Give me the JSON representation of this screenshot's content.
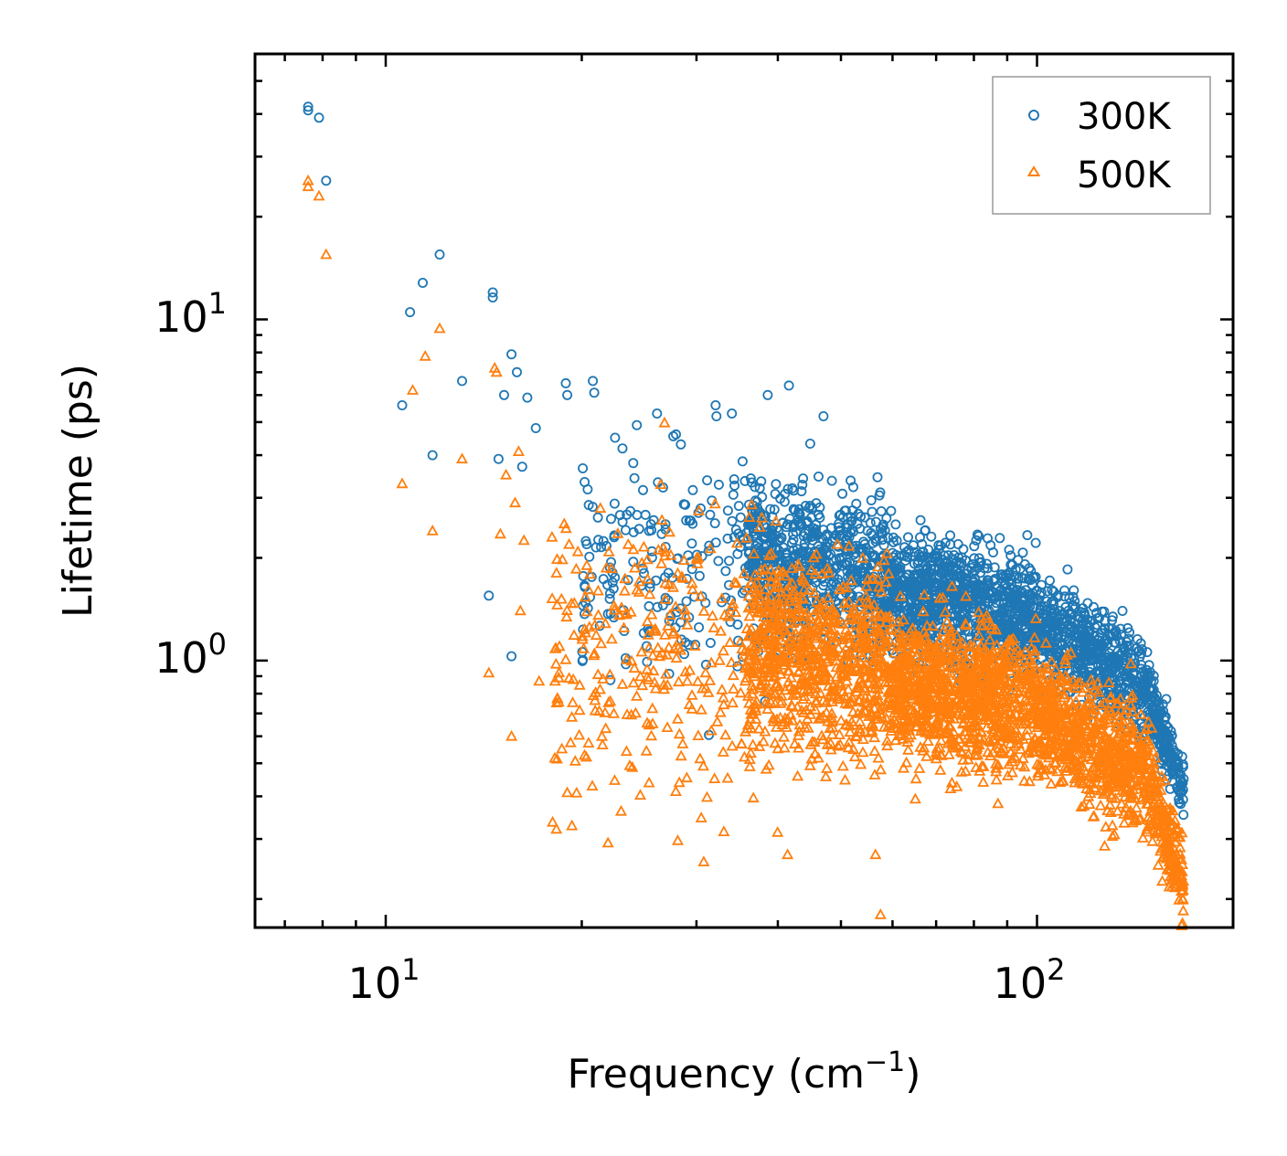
{
  "chart_data": {
    "type": "scatter",
    "title": "",
    "xlabel": "Frequency (cm",
    "xlabel_sup": "−1",
    "xlabel_suffix": ")",
    "ylabel": "Lifetime (ps)",
    "xscale": "log",
    "yscale": "log",
    "xlim": [
      6.3,
      200
    ],
    "ylim": [
      0.165,
      60
    ],
    "x_tick_labels": [
      {
        "value": 10,
        "base": "10",
        "exp": "1"
      },
      {
        "value": 100,
        "base": "10",
        "exp": "2"
      }
    ],
    "y_tick_labels": [
      {
        "value": 1,
        "base": "10",
        "exp": "0"
      },
      {
        "value": 10,
        "base": "10",
        "exp": "1"
      }
    ],
    "legend_position": "top-right",
    "series": [
      {
        "name": "300K",
        "marker": "circle",
        "color": "#1f77b4",
        "points": [
          [
            7.6,
            42
          ],
          [
            7.6,
            41
          ],
          [
            7.9,
            39
          ],
          [
            8.1,
            25.5
          ],
          [
            10.6,
            5.6
          ],
          [
            10.9,
            10.5
          ],
          [
            11.4,
            12.8
          ],
          [
            11.8,
            4.0
          ],
          [
            12.1,
            15.5
          ],
          [
            13.1,
            6.6
          ],
          [
            14.6,
            12
          ],
          [
            14.6,
            11.6
          ],
          [
            14.9,
            3.9
          ],
          [
            15.2,
            6.0
          ],
          [
            15.6,
            7.9
          ],
          [
            15.9,
            7.0
          ],
          [
            16.2,
            3.7
          ],
          [
            16.5,
            5.9
          ],
          [
            17.0,
            4.8
          ],
          [
            14.4,
            1.55
          ],
          [
            15.6,
            1.03
          ],
          [
            18.9,
            6.5
          ],
          [
            19.0,
            6.0
          ],
          [
            20.8,
            6.6
          ],
          [
            20.9,
            6.1
          ],
          [
            22.5,
            4.5
          ],
          [
            24.3,
            4.9
          ],
          [
            26.1,
            5.3
          ],
          [
            27.9,
            4.6
          ],
          [
            32.1,
            5.6
          ],
          [
            32.2,
            5.2
          ],
          [
            34.0,
            5.3
          ],
          [
            41.6,
            6.4
          ],
          [
            38.6,
            6.0
          ],
          [
            47.0,
            5.2
          ]
        ],
        "clusters": [
          {
            "x": [
              20,
              46
            ],
            "yc": [
              1.9,
              1.9
            ],
            "spread": 0.55,
            "n": 260
          },
          {
            "x": [
              36,
              60
            ],
            "yc": [
              2.1,
              1.7
            ],
            "spread": 0.38,
            "n": 650
          },
          {
            "x": [
              60,
              100
            ],
            "yc": [
              1.6,
              1.35
            ],
            "spread": 0.3,
            "n": 900
          },
          {
            "x": [
              100,
              150
            ],
            "yc": [
              1.3,
              0.8
            ],
            "spread": 0.25,
            "n": 600
          },
          {
            "x": [
              150,
              168
            ],
            "yc": [
              0.75,
              0.42
            ],
            "spread": 0.15,
            "n": 160
          }
        ]
      },
      {
        "name": "500K",
        "marker": "triangle",
        "color": "#ff7f0e",
        "points": [
          [
            7.6,
            25.5
          ],
          [
            7.6,
            24.5
          ],
          [
            7.9,
            23
          ],
          [
            8.1,
            15.5
          ],
          [
            10.6,
            3.3
          ],
          [
            11.0,
            6.2
          ],
          [
            11.5,
            7.8
          ],
          [
            11.8,
            2.4
          ],
          [
            12.1,
            9.4
          ],
          [
            13.1,
            3.9
          ],
          [
            14.4,
            0.92
          ],
          [
            14.7,
            7.2
          ],
          [
            14.8,
            7.0
          ],
          [
            15.0,
            2.35
          ],
          [
            15.3,
            3.5
          ],
          [
            15.6,
            0.6
          ],
          [
            15.8,
            2.9
          ],
          [
            16.0,
            4.1
          ],
          [
            16.1,
            1.4
          ],
          [
            16.3,
            2.25
          ],
          [
            17.2,
            0.87
          ],
          [
            18.0,
            2.3
          ],
          [
            19.0,
            0.41
          ],
          [
            41.4,
            0.27
          ],
          [
            56.5,
            0.27
          ],
          [
            57.5,
            0.18
          ]
        ],
        "clusters": [
          {
            "x": [
              18,
              40
            ],
            "yc": [
              1.0,
              1.0
            ],
            "spread": 0.75,
            "n": 320
          },
          {
            "x": [
              36,
              60
            ],
            "yc": [
              1.1,
              0.95
            ],
            "spread": 0.45,
            "n": 800
          },
          {
            "x": [
              60,
              100
            ],
            "yc": [
              0.85,
              0.75
            ],
            "spread": 0.35,
            "n": 1000
          },
          {
            "x": [
              100,
              150
            ],
            "yc": [
              0.7,
              0.45
            ],
            "spread": 0.3,
            "n": 700
          },
          {
            "x": [
              150,
              168
            ],
            "yc": [
              0.42,
              0.22
            ],
            "spread": 0.22,
            "n": 180
          }
        ]
      }
    ]
  }
}
